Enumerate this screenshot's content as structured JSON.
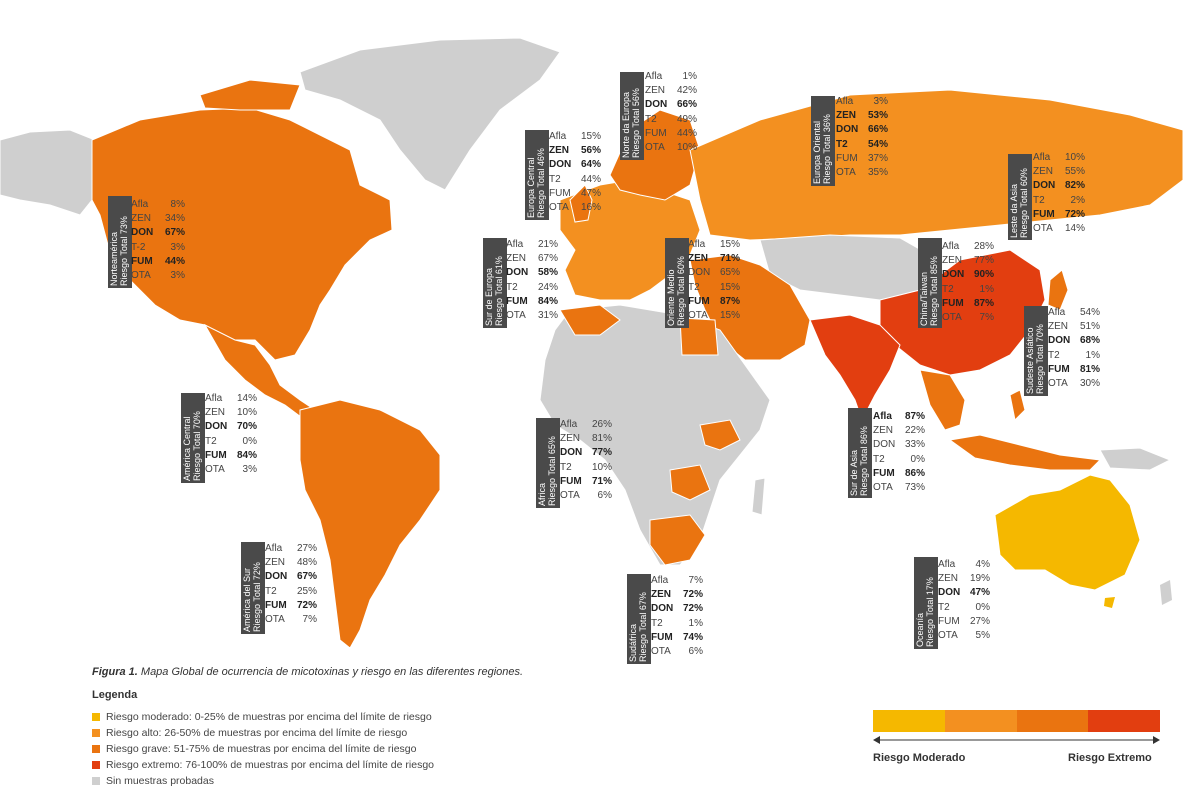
{
  "colors": {
    "moderate": "#f5b800",
    "high": "#f39020",
    "severe": "#ea7410",
    "extreme": "#e23e10",
    "none": "#cfcfcf"
  },
  "regions": [
    {
      "id": "north-america",
      "lines": [
        "Norteamérica",
        "Riesgo Total 73%"
      ],
      "stats": [
        [
          "Afla",
          "8%",
          false
        ],
        [
          "ZEN",
          "34%",
          false
        ],
        [
          "DON",
          "67%",
          true
        ],
        [
          "T-2",
          "3%",
          false
        ],
        [
          "FUM",
          "44%",
          true
        ],
        [
          "OTA",
          "3%",
          false
        ]
      ]
    },
    {
      "id": "central-america",
      "lines": [
        "América Central",
        "Riesgo Total 70%"
      ],
      "stats": [
        [
          "Afla",
          "14%",
          false
        ],
        [
          "ZEN",
          "10%",
          false
        ],
        [
          "DON",
          "70%",
          true
        ],
        [
          "T2",
          "0%",
          false
        ],
        [
          "FUM",
          "84%",
          true
        ],
        [
          "OTA",
          "3%",
          false
        ]
      ]
    },
    {
      "id": "south-america",
      "lines": [
        "América del Sur",
        "Riesgo Total 72%"
      ],
      "stats": [
        [
          "Afla",
          "27%",
          false
        ],
        [
          "ZEN",
          "48%",
          false
        ],
        [
          "DON",
          "67%",
          true
        ],
        [
          "T2",
          "25%",
          false
        ],
        [
          "FUM",
          "72%",
          true
        ],
        [
          "OTA",
          "7%",
          false
        ]
      ]
    },
    {
      "id": "central-europe",
      "lines": [
        "Europa Central",
        "Riesgo Total 46%"
      ],
      "stats": [
        [
          "Afla",
          "15%",
          false
        ],
        [
          "ZEN",
          "56%",
          true
        ],
        [
          "DON",
          "64%",
          true
        ],
        [
          "T2",
          "44%",
          false
        ],
        [
          "FUM",
          "47%",
          false
        ],
        [
          "OTA",
          "16%",
          false
        ]
      ]
    },
    {
      "id": "north-europe",
      "lines": [
        "Norte da Europa",
        "Riesgo Total 56%"
      ],
      "stats": [
        [
          "Afla",
          "1%",
          false
        ],
        [
          "ZEN",
          "42%",
          false
        ],
        [
          "DON",
          "66%",
          true
        ],
        [
          "T2",
          "49%",
          false
        ],
        [
          "FUM",
          "44%",
          false
        ],
        [
          "OTA",
          "10%",
          false
        ]
      ]
    },
    {
      "id": "east-europe",
      "lines": [
        "Europa Oriental",
        "Riesgo Total 36%"
      ],
      "stats": [
        [
          "Afla",
          "3%",
          false
        ],
        [
          "ZEN",
          "53%",
          true
        ],
        [
          "DON",
          "66%",
          true
        ],
        [
          "T2",
          "54%",
          true
        ],
        [
          "FUM",
          "37%",
          false
        ],
        [
          "OTA",
          "35%",
          false
        ]
      ]
    },
    {
      "id": "east-asia",
      "lines": [
        "Leste da Asia",
        "Riesgo Total 60%"
      ],
      "stats": [
        [
          "Afla",
          "10%",
          false
        ],
        [
          "ZEN",
          "55%",
          false
        ],
        [
          "DON",
          "82%",
          true
        ],
        [
          "T2",
          "2%",
          false
        ],
        [
          "FUM",
          "72%",
          true
        ],
        [
          "OTA",
          "14%",
          false
        ]
      ]
    },
    {
      "id": "south-europe",
      "lines": [
        "Sur de Europa",
        "Riesgo Total 61%"
      ],
      "stats": [
        [
          "Afla",
          "21%",
          false
        ],
        [
          "ZEN",
          "67%",
          false
        ],
        [
          "DON",
          "58%",
          true
        ],
        [
          "T2",
          "24%",
          false
        ],
        [
          "FUM",
          "84%",
          true
        ],
        [
          "OTA",
          "31%",
          false
        ]
      ]
    },
    {
      "id": "middle-east",
      "lines": [
        "Oriente Medio",
        "Riesgo Total 60%"
      ],
      "stats": [
        [
          "Afla",
          "15%",
          false
        ],
        [
          "ZEN",
          "71%",
          true
        ],
        [
          "DON",
          "65%",
          false
        ],
        [
          "T2",
          "15%",
          false
        ],
        [
          "FUM",
          "87%",
          true
        ],
        [
          "OTA",
          "15%",
          false
        ]
      ]
    },
    {
      "id": "china",
      "lines": [
        "China/Taiwan",
        "Riesgo Total 85%"
      ],
      "stats": [
        [
          "Afla",
          "28%",
          false
        ],
        [
          "ZEN",
          "77%",
          false
        ],
        [
          "DON",
          "90%",
          true
        ],
        [
          "T2",
          "1%",
          false
        ],
        [
          "FUM",
          "87%",
          true
        ],
        [
          "OTA",
          "7%",
          false
        ]
      ]
    },
    {
      "id": "southeast-asia",
      "lines": [
        "Sudeste Asiático",
        "Riesgo Total 70%"
      ],
      "stats": [
        [
          "Afla",
          "54%",
          false
        ],
        [
          "ZEN",
          "51%",
          false
        ],
        [
          "DON",
          "68%",
          true
        ],
        [
          "T2",
          "1%",
          false
        ],
        [
          "FUM",
          "81%",
          true
        ],
        [
          "OTA",
          "30%",
          false
        ]
      ]
    },
    {
      "id": "africa",
      "lines": [
        "Africa",
        "Riesgo Total 65%"
      ],
      "stats": [
        [
          "Afla",
          "26%",
          false
        ],
        [
          "ZEN",
          "81%",
          false
        ],
        [
          "DON",
          "77%",
          true
        ],
        [
          "T2",
          "10%",
          false
        ],
        [
          "FUM",
          "71%",
          true
        ],
        [
          "OTA",
          "6%",
          false
        ]
      ]
    },
    {
      "id": "south-asia",
      "lines": [
        "Sur de Asia",
        "Riesgo Total 86%"
      ],
      "stats": [
        [
          "Afla",
          "87%",
          true
        ],
        [
          "ZEN",
          "22%",
          false
        ],
        [
          "DON",
          "33%",
          false
        ],
        [
          "T2",
          "0%",
          false
        ],
        [
          "FUM",
          "86%",
          true
        ],
        [
          "OTA",
          "73%",
          false
        ]
      ]
    },
    {
      "id": "south-africa",
      "lines": [
        "Sudáfrica",
        "Riesgo Total 67%"
      ],
      "stats": [
        [
          "Afla",
          "7%",
          false
        ],
        [
          "ZEN",
          "72%",
          true
        ],
        [
          "DON",
          "72%",
          true
        ],
        [
          "T2",
          "1%",
          false
        ],
        [
          "FUM",
          "74%",
          true
        ],
        [
          "OTA",
          "6%",
          false
        ]
      ]
    },
    {
      "id": "oceania",
      "lines": [
        "Oceanía",
        "Riesgo Total 17%"
      ],
      "stats": [
        [
          "Afla",
          "4%",
          false
        ],
        [
          "ZEN",
          "19%",
          false
        ],
        [
          "DON",
          "47%",
          true
        ],
        [
          "T2",
          "0%",
          false
        ],
        [
          "FUM",
          "27%",
          false
        ],
        [
          "OTA",
          "5%",
          false
        ]
      ]
    }
  ],
  "caption": {
    "figure": "Figura 1.",
    "text": " Mapa Global de ocurrencia de micotoxinas y riesgo en las diferentes regiones."
  },
  "legend": {
    "title": "Legenda",
    "items": [
      {
        "label": "Riesgo moderado: 0-25% de muestras por encima del límite de riesgo",
        "color": "#f5b800"
      },
      {
        "label": "Riesgo alto: 26-50% de muestras por encima del límite de riesgo",
        "color": "#f39020"
      },
      {
        "label": "Riesgo grave: 51-75% de muestras por encima del límite de riesgo",
        "color": "#ea7410"
      },
      {
        "label": "Riesgo extremo: 76-100% de muestras por encima del límite de riesgo",
        "color": "#e23e10"
      },
      {
        "label": "Sin muestras probadas",
        "color": "#cfcfcf"
      }
    ]
  },
  "scale": {
    "left_label": "Riesgo Moderado",
    "right_label": "Riesgo Extremo"
  }
}
